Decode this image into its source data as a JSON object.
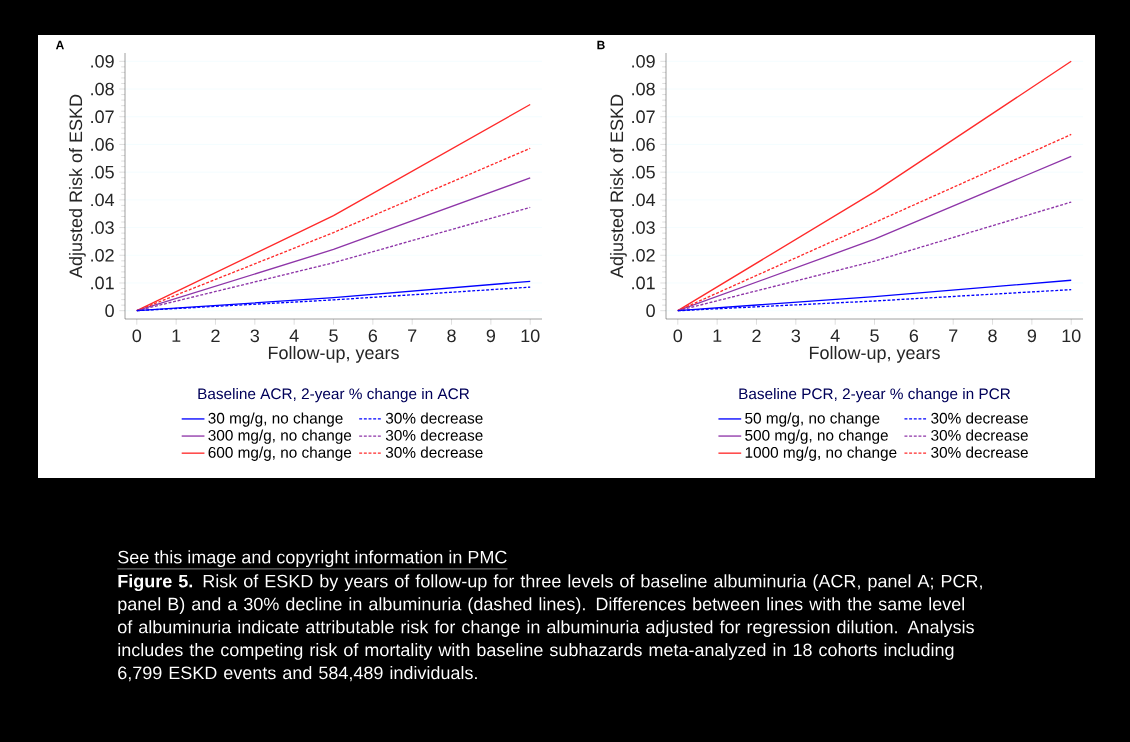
{
  "chart_data": [
    {
      "type": "line",
      "title": "A",
      "xlabel": "Follow-up, years",
      "ylabel": "Adjusted Risk of ESKD",
      "legend_title": "Baseline ACR, 2-year % change in ACR",
      "xlim": [
        -0.3,
        10.3
      ],
      "ylim": [
        -0.003,
        0.093
      ],
      "xticks": [
        0,
        1,
        2,
        3,
        4,
        5,
        6,
        7,
        8,
        9,
        10
      ],
      "yticks": [
        0,
        {
          "value": 0.01,
          "label": ".01"
        },
        {
          "value": 0.02,
          "label": ".02"
        },
        {
          "value": 0.03,
          "label": ".03"
        },
        {
          "value": 0.04,
          "label": ".04"
        },
        {
          "value": 0.05,
          "label": ".05"
        },
        {
          "value": 0.06,
          "label": ".06"
        },
        {
          "value": 0.07,
          "label": ".07"
        },
        {
          "value": 0.08,
          "label": ".08"
        },
        {
          "value": 0.09,
          "label": ".09"
        }
      ],
      "grid": "y",
      "legend": "bottom",
      "marker": "none",
      "line_style": "solid",
      "x": [
        0,
        5,
        10
      ],
      "series": [
        {
          "name": "30 mg/g, no change",
          "color": "#0000ff",
          "values": [
            0,
            0.0047,
            0.0106
          ]
        },
        {
          "name": "30% decrease",
          "color": "#0000ff",
          "line_style": "dashed",
          "values": [
            0,
            0.0039,
            0.0085
          ]
        },
        {
          "name": "300 mg/g, no change",
          "color": "#8e35a8",
          "values": [
            0,
            0.0221,
            0.0479
          ]
        },
        {
          "name": "30% decrease",
          "color": "#8e35a8",
          "line_style": "dashed",
          "values": [
            0,
            0.0173,
            0.0373
          ]
        },
        {
          "name": "600 mg/g, no change",
          "color": "#ff2a2a",
          "values": [
            0,
            0.0343,
            0.0744
          ]
        },
        {
          "name": "30% decrease",
          "color": "#ff2a2a",
          "line_style": "dashed",
          "values": [
            0,
            0.0282,
            0.0586
          ]
        }
      ],
      "annotations": [
        "See this image and copyright information in PMC",
        "**Figure 5.** Risk of ESKD by years of follow-up for three levels of baseline albuminuria (ACR, panel A; PCR, panel B) and a 30% decline in albuminuria (dashed lines). Differences between lines with the same level of albuminuria indicate attributable risk for change in albuminuria adjusted for regression dilution. Analysis includes the competing risk of mortality with baseline subhazards meta-analyzed in 18 cohorts including 6,799 ESKD events and 584,489 individuals."
      ]
    },
    {
      "type": "line",
      "title": "B",
      "xlabel": "Follow-up, years",
      "ylabel": "Adjusted Risk of ESKD",
      "legend_title": "Baseline PCR, 2-year % change in PCR",
      "xlim": [
        -0.3,
        10.3
      ],
      "ylim": [
        -0.003,
        0.093
      ],
      "xticks": [
        0,
        1,
        2,
        3,
        4,
        5,
        6,
        7,
        8,
        9,
        10
      ],
      "yticks": [
        0,
        {
          "value": 0.01,
          "label": ".01"
        },
        {
          "value": 0.02,
          "label": ".02"
        },
        {
          "value": 0.03,
          "label": ".03"
        },
        {
          "value": 0.04,
          "label": ".04"
        },
        {
          "value": 0.05,
          "label": ".05"
        },
        {
          "value": 0.06,
          "label": ".06"
        },
        {
          "value": 0.07,
          "label": ".07"
        },
        {
          "value": 0.08,
          "label": ".08"
        },
        {
          "value": 0.09,
          "label": ".09"
        }
      ],
      "grid": "y",
      "legend": "bottom",
      "marker": "none",
      "line_style": "solid",
      "x": [
        0,
        5,
        10
      ],
      "series": [
        {
          "name": "50 mg/g, no change",
          "color": "#0000ff",
          "values": [
            0,
            0.0051,
            0.011
          ]
        },
        {
          "name": "30% decrease",
          "color": "#0000ff",
          "line_style": "dashed",
          "values": [
            0,
            0.0035,
            0.0076
          ]
        },
        {
          "name": "500 mg/g, no change",
          "color": "#8e35a8",
          "values": [
            0,
            0.0258,
            0.0557
          ]
        },
        {
          "name": "30% decrease",
          "color": "#8e35a8",
          "line_style": "dashed",
          "values": [
            0,
            0.0179,
            0.0392
          ]
        },
        {
          "name": "1000 mg/g, no change",
          "color": "#ff2a2a",
          "values": [
            0,
            0.0429,
            0.09
          ]
        },
        {
          "name": "30% decrease",
          "color": "#ff2a2a",
          "line_style": "dashed",
          "values": [
            0,
            0.0318,
            0.0636
          ]
        }
      ]
    }
  ]
}
